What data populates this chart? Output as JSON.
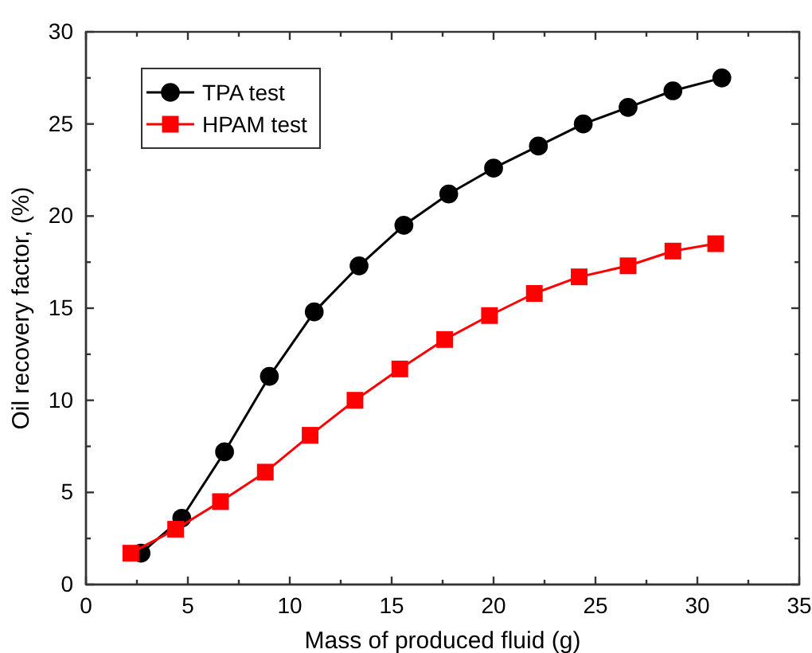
{
  "chart_data": {
    "type": "line",
    "xlabel": "Mass of produced fluid (g)",
    "ylabel": "Oil recovery factor, (%)",
    "xlim": [
      0,
      35
    ],
    "xticks": [
      0,
      5,
      10,
      15,
      20,
      25,
      30,
      35
    ],
    "ylim": [
      0,
      30
    ],
    "yticks": [
      0,
      5,
      10,
      15,
      20,
      25,
      30
    ],
    "grid": false,
    "legend": "top left",
    "series": [
      {
        "name": "TPA test",
        "color": "#000000",
        "marker": "circle",
        "x": [
          2.7,
          4.7,
          6.8,
          9,
          11.2,
          13.4,
          15.6,
          17.8,
          20,
          22.2,
          24.4,
          26.6,
          28.8,
          31.2
        ],
        "values": [
          1.7,
          3.6,
          7.2,
          11.3,
          14.8,
          17.3,
          19.5,
          21.2,
          22.6,
          23.8,
          25,
          25.9,
          26.8,
          27.5
        ]
      },
      {
        "name": "HPAM test",
        "color": "#ff0000",
        "marker": "square",
        "x": [
          2.2,
          4.4,
          6.6,
          8.8,
          11,
          13.2,
          15.4,
          17.6,
          19.8,
          22,
          24.2,
          26.6,
          28.8,
          30.9
        ],
        "values": [
          1.7,
          3.0,
          4.5,
          6.1,
          8.1,
          10,
          11.7,
          13.3,
          14.6,
          15.8,
          16.7,
          17.3,
          18.1,
          18.5
        ]
      }
    ]
  }
}
